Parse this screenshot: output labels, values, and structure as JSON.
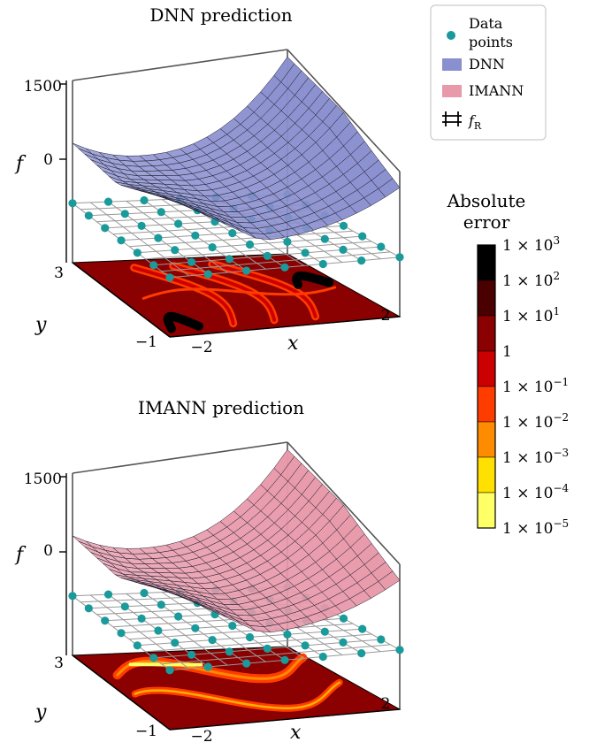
{
  "chart_data": [
    {
      "type": "surface3d",
      "title": "DNN prediction",
      "xlabel": "x",
      "ylabel": "y",
      "zlabel": "f",
      "xticks": [
        "−2",
        "2"
      ],
      "yticks": [
        "−1",
        "3"
      ],
      "zticks": [
        "0",
        "1500"
      ],
      "xlim": [
        -2,
        2
      ],
      "ylim": [
        -1,
        3
      ],
      "surface_color": "#8a8fcf",
      "data_points_grid": {
        "x_count": 7,
        "y_count": 7
      }
    },
    {
      "type": "surface3d",
      "title": "IMANN prediction",
      "xlabel": "x",
      "ylabel": "y",
      "zlabel": "f",
      "xticks": [
        "−2",
        "2"
      ],
      "yticks": [
        "−1",
        "3"
      ],
      "zticks": [
        "0",
        "1500"
      ],
      "xlim": [
        -2,
        2
      ],
      "ylim": [
        -1,
        3
      ],
      "surface_color": "#e899aa",
      "data_points_grid": {
        "x_count": 7,
        "y_count": 7
      }
    }
  ],
  "legend": {
    "items": [
      {
        "label_line1": "Data",
        "label_line2": "points",
        "color": "#1a9a9a",
        "marker": "circle"
      },
      {
        "label": "DNN",
        "color": "#8a8fcf",
        "marker": "patch"
      },
      {
        "label": "IMANN",
        "color": "#e899aa",
        "marker": "patch"
      },
      {
        "label": "f",
        "sub": "R",
        "color": "#000000",
        "marker": "wireframe"
      }
    ]
  },
  "colorbar": {
    "title_line1": "Absolute",
    "title_line2": "error",
    "scale": "log",
    "colors": [
      "#ffffff",
      "#ffff66",
      "#ffe000",
      "#ff8c00",
      "#ff3c00",
      "#cc0000",
      "#8b0000",
      "#4a0000",
      "#000000"
    ],
    "labels": [
      {
        "base": "1 × 10",
        "exp": "3"
      },
      {
        "base": "1 × 10",
        "exp": "2"
      },
      {
        "base": "1 × 10",
        "exp": "1"
      },
      {
        "base": "1",
        "exp": ""
      },
      {
        "base": "1 × 10",
        "exp": "−1"
      },
      {
        "base": "1 × 10",
        "exp": "−2"
      },
      {
        "base": "1 × 10",
        "exp": "−3"
      },
      {
        "base": "1 × 10",
        "exp": "−4"
      },
      {
        "base": "1 × 10",
        "exp": "−5"
      }
    ]
  }
}
